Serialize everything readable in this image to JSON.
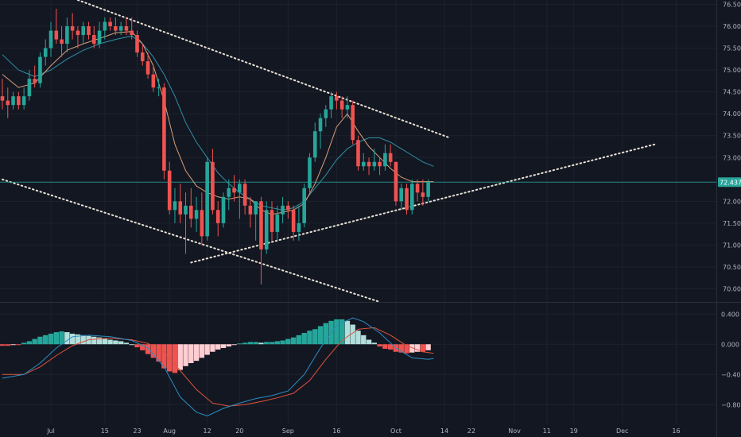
{
  "colors": {
    "background": "#131722",
    "grid": "#1e222d",
    "up": "#26a69a",
    "down": "#ef5350",
    "ma_fast": "#d8a078",
    "ma_slow": "#2f8fa6",
    "trendline": "#e8e2d4",
    "macd_line": "#2a8ec4",
    "signal_line": "#e0533d",
    "hist_up_strong": "#26a69a",
    "hist_up_weak": "#b2dfdb",
    "hist_down_strong": "#ef5350",
    "hist_down_weak": "#ffcdd2",
    "last_price_line": "#26a69a"
  },
  "chart_data": [
    {
      "type": "candlestick",
      "ylim": [
        69.7,
        76.6
      ],
      "xlim": [
        0,
        120
      ],
      "y_ticks": [
        "76.500",
        "76.000",
        "75.500",
        "75.000",
        "74.500",
        "74.000",
        "73.500",
        "73.000",
        "72.000",
        "71.500",
        "71.000",
        "70.500",
        "70.000"
      ],
      "y_tick_values": [
        76.5,
        76.0,
        75.5,
        75.0,
        74.5,
        74.0,
        73.5,
        73.0,
        72.0,
        71.5,
        71.0,
        70.5,
        70.0
      ],
      "x_ticks": [
        {
          "label": "Jul",
          "x": 9
        },
        {
          "label": "15",
          "x": 19
        },
        {
          "label": "23",
          "x": 25
        },
        {
          "label": "Aug",
          "x": 31
        },
        {
          "label": "12",
          "x": 38
        },
        {
          "label": "20",
          "x": 44
        },
        {
          "label": "Sep",
          "x": 53
        },
        {
          "label": "16",
          "x": 62
        },
        {
          "label": "Oct",
          "x": 73
        },
        {
          "label": "14",
          "x": 82
        },
        {
          "label": "22",
          "x": 87
        },
        {
          "label": "Nov",
          "x": 95
        },
        {
          "label": "11",
          "x": 101
        },
        {
          "label": "19",
          "x": 106
        },
        {
          "label": "Dec",
          "x": 115
        },
        {
          "label": "16",
          "x": 125
        }
      ],
      "last_price": "72.437",
      "last_price_value": 72.437,
      "candles": [
        [
          74.4,
          74.8,
          74.1,
          74.3
        ],
        [
          74.3,
          74.6,
          73.9,
          74.2
        ],
        [
          74.2,
          74.5,
          74.1,
          74.4
        ],
        [
          74.4,
          74.5,
          74.1,
          74.2
        ],
        [
          74.2,
          74.6,
          74.1,
          74.4
        ],
        [
          74.4,
          75.0,
          74.3,
          74.8
        ],
        [
          74.8,
          75.1,
          74.6,
          74.7
        ],
        [
          74.7,
          75.4,
          74.6,
          75.3
        ],
        [
          75.3,
          75.7,
          75.1,
          75.5
        ],
        [
          75.5,
          76.1,
          75.3,
          75.9
        ],
        [
          75.9,
          76.4,
          75.6,
          75.7
        ],
        [
          75.7,
          76.0,
          75.3,
          75.6
        ],
        [
          75.6,
          76.2,
          75.4,
          76.0
        ],
        [
          76.0,
          76.3,
          75.7,
          75.9
        ],
        [
          75.9,
          76.0,
          75.5,
          75.8
        ],
        [
          75.8,
          76.1,
          75.6,
          76.0
        ],
        [
          76.0,
          76.1,
          75.7,
          75.8
        ],
        [
          75.8,
          76.0,
          75.5,
          75.6
        ],
        [
          75.6,
          76.1,
          75.5,
          75.9
        ],
        [
          75.9,
          76.2,
          75.7,
          76.1
        ],
        [
          76.1,
          76.2,
          75.9,
          76.0
        ],
        [
          76.0,
          76.2,
          75.8,
          75.9
        ],
        [
          75.9,
          76.1,
          75.8,
          76.0
        ],
        [
          76.0,
          76.2,
          75.8,
          75.9
        ],
        [
          75.9,
          76.2,
          75.7,
          75.8
        ],
        [
          75.8,
          75.9,
          75.3,
          75.4
        ],
        [
          75.4,
          75.6,
          75.1,
          75.2
        ],
        [
          75.2,
          75.4,
          74.8,
          74.9
        ],
        [
          74.9,
          75.1,
          74.5,
          74.6
        ],
        [
          74.6,
          74.8,
          74.4,
          74.6
        ],
        [
          74.6,
          74.7,
          72.5,
          72.7
        ],
        [
          72.7,
          72.9,
          71.7,
          71.8
        ],
        [
          71.8,
          72.3,
          71.5,
          72.0
        ],
        [
          72.0,
          72.4,
          71.5,
          71.7
        ],
        [
          71.7,
          72.2,
          70.8,
          71.9
        ],
        [
          71.9,
          72.3,
          71.4,
          71.6
        ],
        [
          71.6,
          72.1,
          71.3,
          71.8
        ],
        [
          71.8,
          72.2,
          71.0,
          71.2
        ],
        [
          71.2,
          73.0,
          71.1,
          72.9
        ],
        [
          72.9,
          73.2,
          71.7,
          71.8
        ],
        [
          71.8,
          72.0,
          71.2,
          71.5
        ],
        [
          71.5,
          72.2,
          71.4,
          72.1
        ],
        [
          72.1,
          72.5,
          71.8,
          72.3
        ],
        [
          72.3,
          72.6,
          72.0,
          72.2
        ],
        [
          72.2,
          72.5,
          71.6,
          72.4
        ],
        [
          72.4,
          72.5,
          71.7,
          71.9
        ],
        [
          71.9,
          72.1,
          71.4,
          71.7
        ],
        [
          71.7,
          72.0,
          71.1,
          72.0
        ],
        [
          72.0,
          72.1,
          70.1,
          70.9
        ],
        [
          70.9,
          72.0,
          70.8,
          71.8
        ],
        [
          71.8,
          72.0,
          71.1,
          71.3
        ],
        [
          71.3,
          71.9,
          71.1,
          71.7
        ],
        [
          71.7,
          72.1,
          71.5,
          71.9
        ],
        [
          71.9,
          72.0,
          71.6,
          71.8
        ],
        [
          71.8,
          71.9,
          71.1,
          71.3
        ],
        [
          71.3,
          71.9,
          71.1,
          71.5
        ],
        [
          71.5,
          72.4,
          71.4,
          72.3
        ],
        [
          72.3,
          73.1,
          72.2,
          73.0
        ],
        [
          73.0,
          73.8,
          72.9,
          73.6
        ],
        [
          73.6,
          74.0,
          73.2,
          73.9
        ],
        [
          73.9,
          74.2,
          73.7,
          74.1
        ],
        [
          74.1,
          74.5,
          73.9,
          74.4
        ],
        [
          74.4,
          74.5,
          74.1,
          74.3
        ],
        [
          74.3,
          74.4,
          73.9,
          74.1
        ],
        [
          74.1,
          74.4,
          73.9,
          74.2
        ],
        [
          74.2,
          74.3,
          73.3,
          73.4
        ],
        [
          73.4,
          73.5,
          72.7,
          72.8
        ],
        [
          72.8,
          73.1,
          72.7,
          72.9
        ],
        [
          72.9,
          73.0,
          72.6,
          72.8
        ],
        [
          72.8,
          73.2,
          72.7,
          72.9
        ],
        [
          72.9,
          73.0,
          72.6,
          72.8
        ],
        [
          72.8,
          73.3,
          72.7,
          73.1
        ],
        [
          73.1,
          73.3,
          72.8,
          72.9
        ],
        [
          72.9,
          72.9,
          71.9,
          72.0
        ],
        [
          72.0,
          72.4,
          71.8,
          72.3
        ],
        [
          72.3,
          72.4,
          71.7,
          71.8
        ],
        [
          71.8,
          72.5,
          71.7,
          72.4
        ],
        [
          72.4,
          72.5,
          72.0,
          72.2
        ],
        [
          72.2,
          72.5,
          71.9,
          72.1
        ],
        [
          72.1,
          72.5,
          72.0,
          72.44
        ]
      ],
      "ma_fast": [
        [
          0,
          74.9
        ],
        [
          3,
          74.6
        ],
        [
          6,
          74.7
        ],
        [
          9,
          75.1
        ],
        [
          12,
          75.45
        ],
        [
          15,
          75.6
        ],
        [
          18,
          75.72
        ],
        [
          21,
          75.85
        ],
        [
          24,
          75.88
        ],
        [
          26,
          75.6
        ],
        [
          28,
          75.1
        ],
        [
          30,
          74.3
        ],
        [
          32,
          73.3
        ],
        [
          34,
          72.7
        ],
        [
          36,
          72.35
        ],
        [
          38,
          72.2
        ],
        [
          40,
          72.1
        ],
        [
          42,
          72.05
        ],
        [
          44,
          72.1
        ],
        [
          46,
          72.05
        ],
        [
          48,
          71.8
        ],
        [
          50,
          71.7
        ],
        [
          52,
          71.75
        ],
        [
          54,
          71.8
        ],
        [
          56,
          71.95
        ],
        [
          58,
          72.4
        ],
        [
          60,
          73.0
        ],
        [
          62,
          73.7
        ],
        [
          64,
          74.0
        ],
        [
          66,
          73.6
        ],
        [
          68,
          73.25
        ],
        [
          70,
          73.0
        ],
        [
          72,
          72.75
        ],
        [
          74,
          72.55
        ],
        [
          76,
          72.45
        ],
        [
          78,
          72.45
        ],
        [
          80,
          72.45
        ]
      ],
      "ma_slow": [
        [
          0,
          75.35
        ],
        [
          3,
          75.0
        ],
        [
          6,
          74.85
        ],
        [
          9,
          75.0
        ],
        [
          12,
          75.25
        ],
        [
          15,
          75.45
        ],
        [
          18,
          75.6
        ],
        [
          21,
          75.7
        ],
        [
          24,
          75.78
        ],
        [
          26,
          75.6
        ],
        [
          28,
          75.3
        ],
        [
          30,
          74.9
        ],
        [
          32,
          74.4
        ],
        [
          34,
          73.8
        ],
        [
          36,
          73.35
        ],
        [
          38,
          73.0
        ],
        [
          40,
          72.65
        ],
        [
          42,
          72.4
        ],
        [
          44,
          72.2
        ],
        [
          46,
          72.05
        ],
        [
          48,
          71.9
        ],
        [
          50,
          71.85
        ],
        [
          52,
          71.8
        ],
        [
          54,
          71.85
        ],
        [
          56,
          72.0
        ],
        [
          58,
          72.3
        ],
        [
          60,
          72.6
        ],
        [
          62,
          72.95
        ],
        [
          64,
          73.2
        ],
        [
          66,
          73.35
        ],
        [
          68,
          73.45
        ],
        [
          70,
          73.45
        ],
        [
          72,
          73.35
        ],
        [
          74,
          73.2
        ],
        [
          76,
          73.05
        ],
        [
          78,
          72.9
        ],
        [
          80,
          72.8
        ]
      ],
      "trendlines": [
        {
          "name": "upper-resistance",
          "points": [
            [
              14,
              76.6
            ],
            [
              83,
              73.45
            ]
          ]
        },
        {
          "name": "lower-support-left",
          "points": [
            [
              0,
              72.5
            ],
            [
              70,
              69.7
            ]
          ]
        },
        {
          "name": "rising-support",
          "points": [
            [
              35,
              70.6
            ],
            [
              121,
              73.3
            ]
          ]
        }
      ]
    },
    {
      "type": "macd",
      "ylim": [
        -1.05,
        0.55
      ],
      "y_ticks": [
        "0.400",
        "0.000",
        "−0.400",
        "−0.800"
      ],
      "y_tick_values": [
        0.4,
        0.0,
        -0.4,
        -0.8
      ],
      "histogram": [
        -0.02,
        -0.02,
        -0.01,
        -0.01,
        0.02,
        0.04,
        0.07,
        0.1,
        0.12,
        0.14,
        0.16,
        0.17,
        0.16,
        0.14,
        0.13,
        0.12,
        0.11,
        0.1,
        0.09,
        0.08,
        0.06,
        0.05,
        0.04,
        0.02,
        0.0,
        -0.04,
        -0.08,
        -0.13,
        -0.18,
        -0.23,
        -0.32,
        -0.36,
        -0.38,
        -0.34,
        -0.29,
        -0.25,
        -0.22,
        -0.18,
        -0.14,
        -0.1,
        -0.07,
        -0.05,
        -0.03,
        -0.01,
        0.01,
        0.02,
        0.03,
        0.03,
        0.02,
        0.03,
        0.03,
        0.04,
        0.05,
        0.07,
        0.09,
        0.12,
        0.15,
        0.18,
        0.2,
        0.24,
        0.28,
        0.31,
        0.33,
        0.33,
        0.31,
        0.26,
        0.18,
        0.12,
        0.06,
        0.02,
        -0.03,
        -0.06,
        -0.07,
        -0.1,
        -0.11,
        -0.12,
        -0.11,
        -0.1,
        -0.1,
        -0.08
      ],
      "macd_line": [
        [
          0,
          -0.45
        ],
        [
          4,
          -0.4
        ],
        [
          7,
          -0.25
        ],
        [
          10,
          -0.05
        ],
        [
          13,
          0.1
        ],
        [
          16,
          0.12
        ],
        [
          20,
          0.1
        ],
        [
          24,
          0.05
        ],
        [
          27,
          -0.05
        ],
        [
          30,
          -0.3
        ],
        [
          33,
          -0.7
        ],
        [
          36,
          -0.9
        ],
        [
          38,
          -0.95
        ],
        [
          41,
          -0.85
        ],
        [
          44,
          -0.78
        ],
        [
          47,
          -0.72
        ],
        [
          50,
          -0.68
        ],
        [
          53,
          -0.62
        ],
        [
          56,
          -0.4
        ],
        [
          59,
          -0.05
        ],
        [
          62,
          0.25
        ],
        [
          65,
          0.35
        ],
        [
          67,
          0.3
        ],
        [
          70,
          0.15
        ],
        [
          73,
          -0.05
        ],
        [
          76,
          -0.18
        ],
        [
          79,
          -0.2
        ],
        [
          80,
          -0.19
        ]
      ],
      "signal_line": [
        [
          0,
          -0.4
        ],
        [
          4,
          -0.4
        ],
        [
          7,
          -0.3
        ],
        [
          10,
          -0.15
        ],
        [
          13,
          -0.02
        ],
        [
          16,
          0.06
        ],
        [
          20,
          0.08
        ],
        [
          24,
          0.06
        ],
        [
          27,
          0.01
        ],
        [
          30,
          -0.1
        ],
        [
          33,
          -0.35
        ],
        [
          36,
          -0.6
        ],
        [
          39,
          -0.78
        ],
        [
          42,
          -0.82
        ],
        [
          45,
          -0.8
        ],
        [
          48,
          -0.76
        ],
        [
          51,
          -0.71
        ],
        [
          54,
          -0.65
        ],
        [
          57,
          -0.48
        ],
        [
          60,
          -0.2
        ],
        [
          63,
          0.05
        ],
        [
          66,
          0.2
        ],
        [
          69,
          0.22
        ],
        [
          72,
          0.12
        ],
        [
          75,
          -0.02
        ],
        [
          78,
          -0.1
        ],
        [
          80,
          -0.12
        ]
      ]
    }
  ]
}
